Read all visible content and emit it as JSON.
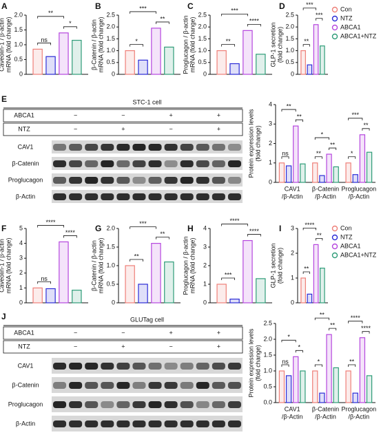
{
  "groups": [
    {
      "name": "Con",
      "color": "#ee7f78"
    },
    {
      "name": "NTZ",
      "color": "#2b2bd6"
    },
    {
      "name": "ABCA1",
      "color": "#b546de"
    },
    {
      "name": "ABCA1+NTZ",
      "color": "#2e9c78"
    }
  ],
  "chart_data": [
    {
      "type": "bar",
      "label": "A",
      "ylabel": [
        "Caveolin-1 / β-actin",
        "mRNA (fold change)"
      ],
      "ylim": [
        0,
        2
      ],
      "yticks": [
        0,
        0.5,
        {
          "value": 1,
          "label": "1.0"
        },
        1.5,
        {
          "value": 2,
          "label": "2.0"
        }
      ],
      "values": [
        0.85,
        0.6,
        1.4,
        1.15
      ],
      "sig": [
        {
          "pair": [
            "Con",
            "NTZ"
          ],
          "label": "ns"
        },
        {
          "pair": [
            "ABCA1",
            "ABCA1+NTZ"
          ],
          "label": "*"
        },
        {
          "pair": [
            "Con",
            "ABCA1"
          ],
          "label": "**"
        }
      ]
    },
    {
      "type": "bar",
      "label": "B",
      "ylabel": [
        "β-Catenin / β-actin",
        "mRNA (fold change)"
      ],
      "ylim": [
        0,
        2.5
      ],
      "yticks": [
        0,
        0.5,
        {
          "value": 1,
          "label": "1.0"
        },
        1.5,
        {
          "value": 2,
          "label": "2.0"
        },
        2.5
      ],
      "values": [
        1.0,
        0.6,
        1.95,
        1.15
      ],
      "sig": [
        {
          "pair": [
            "Con",
            "NTZ"
          ],
          "label": "*"
        },
        {
          "pair": [
            "ABCA1",
            "ABCA1+NTZ"
          ],
          "label": "**"
        },
        {
          "pair": [
            "Con",
            "ABCA1"
          ],
          "label": "***"
        }
      ]
    },
    {
      "type": "bar",
      "label": "C",
      "ylabel": [
        "Proglucagon / β-actin",
        "mRNA (fold change)"
      ],
      "ylim": [
        0,
        2.5
      ],
      "yticks": [
        0,
        0.5,
        {
          "value": 1,
          "label": "1.0"
        },
        1.5,
        {
          "value": 2,
          "label": "2.0"
        },
        2.5
      ],
      "values": [
        1.0,
        0.45,
        1.85,
        0.85
      ],
      "sig": [
        {
          "pair": [
            "Con",
            "NTZ"
          ],
          "label": "**"
        },
        {
          "pair": [
            "ABCA1",
            "ABCA1+NTZ"
          ],
          "label": "****"
        },
        {
          "pair": [
            "Con",
            "ABCA1"
          ],
          "label": "***"
        }
      ]
    },
    {
      "type": "bar",
      "label": "D",
      "ylabel": [
        "GLP-1 secretion",
        "(fold change)"
      ],
      "ylim": [
        0,
        2.5
      ],
      "yticks": [
        0,
        0.5,
        {
          "value": 1,
          "label": "1.0"
        },
        1.5,
        {
          "value": 2,
          "label": "2.0"
        },
        2.5
      ],
      "values": [
        1.0,
        0.4,
        2.1,
        1.2
      ],
      "sig": [
        {
          "pair": [
            "Con",
            "NTZ"
          ],
          "label": "**"
        },
        {
          "pair": [
            "ABCA1",
            "ABCA1+NTZ"
          ],
          "label": "***"
        },
        {
          "pair": [
            "Con",
            "ABCA1"
          ],
          "label": "***"
        }
      ]
    },
    {
      "type": "bar",
      "ylabel": [
        "Protein expression levels",
        "(fold change)"
      ],
      "ylim": [
        0,
        4
      ],
      "yticks": [
        0,
        1,
        2,
        3,
        4
      ],
      "categories": [
        [
          "CAV1",
          "/β-Actin"
        ],
        [
          "β-Catenin",
          "/β-Actin"
        ],
        [
          "Proglucagon",
          "/β-Actin"
        ]
      ],
      "values": [
        [
          1.0,
          0.85,
          2.9,
          0.95
        ],
        [
          1.0,
          0.35,
          1.45,
          0.8
        ],
        [
          1.0,
          0.4,
          2.45,
          1.55
        ]
      ],
      "sig": [
        [
          {
            "pair": [
              "Con",
              "NTZ"
            ],
            "label": "ns"
          },
          {
            "pair": [
              "ABCA1",
              "ABCA1+NTZ"
            ],
            "label": "**"
          },
          {
            "pair": [
              "Con",
              "ABCA1"
            ],
            "label": "**"
          }
        ],
        [
          {
            "pair": [
              "Con",
              "NTZ"
            ],
            "label": "**"
          },
          {
            "pair": [
              "ABCA1",
              "ABCA1+NTZ"
            ],
            "label": "**"
          },
          {
            "pair": [
              "Con",
              "ABCA1"
            ],
            "label": "*"
          }
        ],
        [
          {
            "pair": [
              "Con",
              "NTZ"
            ],
            "label": "*"
          },
          {
            "pair": [
              "ABCA1",
              "ABCA1+NTZ"
            ],
            "label": "**"
          },
          {
            "pair": [
              "Con",
              "ABCA1"
            ],
            "label": "***"
          }
        ]
      ]
    },
    {
      "type": "bar",
      "label": "F",
      "ylabel": [
        "Caveolin-1 / β-actin",
        "mRNA (fold change)"
      ],
      "ylim": [
        0,
        5
      ],
      "yticks": [
        0,
        1,
        2,
        3,
        4,
        5
      ],
      "values": [
        1.0,
        0.95,
        4.1,
        0.85
      ],
      "sig": [
        {
          "pair": [
            "Con",
            "NTZ"
          ],
          "label": "ns"
        },
        {
          "pair": [
            "ABCA1",
            "ABCA1+NTZ"
          ],
          "label": "****"
        },
        {
          "pair": [
            "Con",
            "ABCA1"
          ],
          "label": "****"
        }
      ]
    },
    {
      "type": "bar",
      "label": "G",
      "ylabel": [
        "β-Catenin / β-actin",
        "mRNA (fold change)"
      ],
      "ylim": [
        0,
        2
      ],
      "yticks": [
        0,
        0.5,
        {
          "value": 1,
          "label": "1.0"
        },
        1.5,
        {
          "value": 2,
          "label": "2.0"
        }
      ],
      "values": [
        1.0,
        0.5,
        1.6,
        1.1
      ],
      "sig": [
        {
          "pair": [
            "Con",
            "NTZ"
          ],
          "label": "**"
        },
        {
          "pair": [
            "ABCA1",
            "ABCA1+NTZ"
          ],
          "label": "**"
        },
        {
          "pair": [
            "Con",
            "ABCA1"
          ],
          "label": "***"
        }
      ]
    },
    {
      "type": "bar",
      "label": "H",
      "ylabel": [
        "Proglucagon / β-actin",
        "mRNA (fold change)"
      ],
      "ylim": [
        0,
        4
      ],
      "yticks": [
        0,
        1,
        2,
        3,
        4
      ],
      "values": [
        1.0,
        0.2,
        3.35,
        1.3
      ],
      "sig": [
        {
          "pair": [
            "Con",
            "NTZ"
          ],
          "label": "***"
        },
        {
          "pair": [
            "ABCA1",
            "ABCA1+NTZ"
          ],
          "label": "****"
        },
        {
          "pair": [
            "Con",
            "ABCA1"
          ],
          "label": "****"
        }
      ]
    },
    {
      "type": "bar",
      "label": "I",
      "ylabel": [
        "GLP-1 secretion",
        "(fold change)"
      ],
      "ylim": [
        0,
        3
      ],
      "yticks": [
        0,
        1,
        2,
        3
      ],
      "values": [
        1.0,
        0.35,
        2.35,
        1.4
      ],
      "sig": [
        {
          "pair": [
            "Con",
            "NTZ"
          ],
          "label": "**"
        },
        {
          "pair": [
            "ABCA1",
            "ABCA1+NTZ"
          ],
          "label": "**"
        },
        {
          "pair": [
            "Con",
            "ABCA1"
          ],
          "label": "****"
        }
      ]
    },
    {
      "type": "bar",
      "ylabel": [
        "Protein expression levels",
        "(fold change)"
      ],
      "ylim": [
        0,
        2.5
      ],
      "yticks": [
        {
          "value": 0,
          "label": "0.0"
        },
        0.5,
        {
          "value": 1,
          "label": "1.0"
        },
        1.5,
        {
          "value": 2,
          "label": "2.0"
        },
        2.5
      ],
      "categories": [
        [
          "CAV1",
          "/β-Actin"
        ],
        [
          "β-Catenin",
          "/β-Actin"
        ],
        [
          "Proglucagon",
          "/β-Actin"
        ]
      ],
      "values": [
        [
          1.0,
          0.85,
          1.45,
          1.0
        ],
        [
          1.0,
          0.3,
          2.15,
          1.1
        ],
        [
          1.0,
          0.3,
          2.05,
          0.85
        ]
      ],
      "sig": [
        [
          {
            "pair": [
              "Con",
              "NTZ"
            ],
            "label": "ns"
          },
          {
            "pair": [
              "ABCA1",
              "ABCA1+NTZ"
            ],
            "label": "*"
          },
          {
            "pair": [
              "Con",
              "ABCA1"
            ],
            "label": "*"
          }
        ],
        [
          {
            "pair": [
              "Con",
              "NTZ"
            ],
            "label": "*"
          },
          {
            "pair": [
              "ABCA1",
              "ABCA1+NTZ"
            ],
            "label": "**"
          },
          {
            "pair": [
              "Con",
              "ABCA1"
            ],
            "label": "**"
          }
        ],
        [
          {
            "pair": [
              "Con",
              "NTZ"
            ],
            "label": "**"
          },
          {
            "pair": [
              "ABCA1",
              "ABCA1+NTZ"
            ],
            "label": "****"
          },
          {
            "pair": [
              "Con",
              "ABCA1"
            ],
            "label": "****"
          }
        ]
      ]
    }
  ],
  "blots": [
    {
      "label": "E",
      "title": "STC-1 cell",
      "conditions": [
        {
          "name": "ABCA1",
          "signs": [
            "−",
            "−",
            "+",
            "+"
          ]
        },
        {
          "name": "NTZ",
          "signs": [
            "−",
            "+",
            "−",
            "+"
          ]
        }
      ],
      "bands": [
        "CAV1",
        "β-Catenin",
        "Proglucagon",
        "β-Actin"
      ]
    },
    {
      "label": "J",
      "title": "GLUTag cell",
      "conditions": [
        {
          "name": "ABCA1",
          "signs": [
            "−",
            "−",
            "+",
            "+"
          ]
        },
        {
          "name": "NTZ",
          "signs": [
            "−",
            "+",
            "−",
            "+"
          ]
        }
      ],
      "bands": [
        "CAV1",
        "β-Catenin",
        "Proglucagon",
        "β-Actin"
      ]
    }
  ]
}
